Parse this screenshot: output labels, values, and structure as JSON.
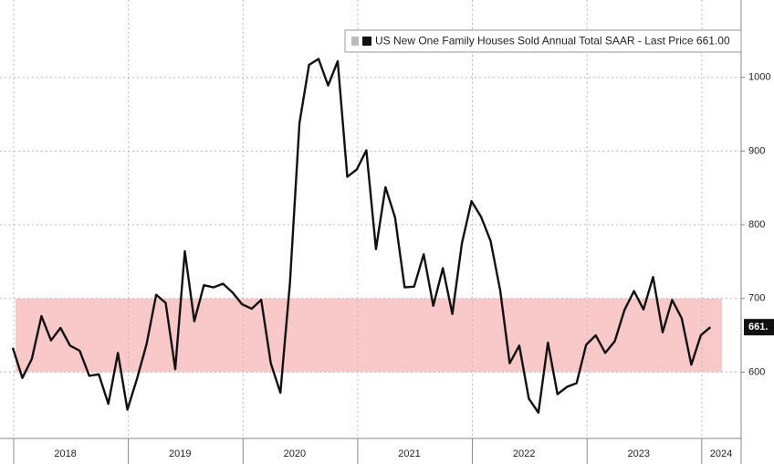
{
  "chart_data": {
    "type": "line",
    "legend": "US New One Family Houses Sold Annual Total SAAR - Last Price 661.00",
    "last_label": "661.",
    "categories": [
      null,
      null,
      null,
      null,
      null,
      null,
      null,
      null,
      null,
      null,
      null,
      null,
      null,
      null,
      null,
      null,
      null,
      null,
      null,
      null,
      null,
      null,
      null,
      null,
      null,
      null,
      null,
      null,
      null,
      null,
      null,
      null,
      null,
      null,
      null,
      null,
      null,
      null,
      null,
      null,
      null,
      null,
      null,
      null,
      null,
      null,
      null,
      null,
      null,
      null,
      null,
      null,
      null,
      null,
      null,
      null,
      null,
      null,
      null,
      null,
      null,
      null,
      null,
      null,
      null,
      null,
      null,
      null,
      null,
      null,
      null,
      null,
      null,
      null
    ],
    "values": [
      633,
      592,
      618,
      676,
      643,
      660,
      636,
      629,
      595,
      597,
      557,
      626,
      549,
      591,
      638,
      705,
      694,
      604,
      764,
      669,
      718,
      715,
      720,
      708,
      692,
      686,
      698,
      612,
      572,
      720,
      938,
      1017,
      1025,
      989,
      1022,
      865,
      875,
      901,
      767,
      851,
      810,
      715,
      716,
      760,
      690,
      741,
      679,
      775,
      832,
      811,
      778,
      711,
      612,
      636,
      564,
      545,
      640,
      570,
      580,
      585,
      637,
      650,
      626,
      642,
      684,
      710,
      685,
      729,
      654,
      698,
      673,
      610,
      650,
      661
    ],
    "color": "#111111",
    "year_labels": [
      "2018",
      "2019",
      "2020",
      "2021",
      "2022",
      "2023",
      "2024"
    ],
    "band": [
      600,
      700
    ],
    "band_color": "#f9c9c9",
    "ylim": [
      510,
      1105
    ],
    "yticks": [
      600,
      700,
      800,
      900,
      1000
    ],
    "grid": true
  }
}
